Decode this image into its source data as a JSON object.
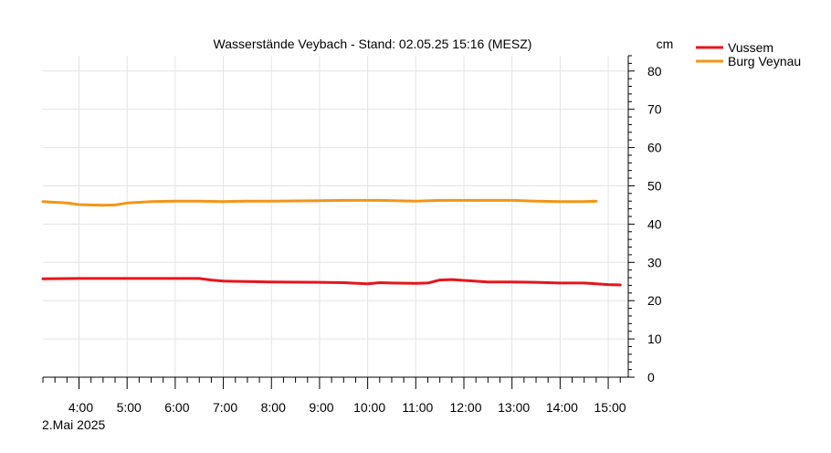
{
  "chart_data": {
    "type": "line",
    "title": "Wasserstände Veybach - Stand: 02.05.25 15:16 (MESZ)",
    "y_unit": "cm",
    "date_label": "2.Mai 2025",
    "x_range": [
      "03:15",
      "15:25"
    ],
    "ylim": [
      0,
      84
    ],
    "y_ticks": [
      "0",
      "10",
      "20",
      "30",
      "40",
      "50",
      "60",
      "70",
      "80"
    ],
    "x_ticks": [
      "4:00",
      "5:00",
      "6:00",
      "7:00",
      "8:00",
      "9:00",
      "10:00",
      "11:00",
      "12:00",
      "13:00",
      "14:00",
      "15:00"
    ],
    "grid": true,
    "legend_position": "top-right",
    "series": [
      {
        "name": "Vussem",
        "color": "#e8141c",
        "points": [
          [
            "03:15",
            25.7
          ],
          [
            "04:00",
            25.8
          ],
          [
            "05:00",
            25.8
          ],
          [
            "05:45",
            25.8
          ],
          [
            "06:30",
            25.8
          ],
          [
            "06:45",
            25.4
          ],
          [
            "07:00",
            25.1
          ],
          [
            "07:30",
            25.0
          ],
          [
            "08:00",
            24.9
          ],
          [
            "09:00",
            24.8
          ],
          [
            "09:30",
            24.7
          ],
          [
            "10:00",
            24.4
          ],
          [
            "10:15",
            24.7
          ],
          [
            "10:30",
            24.6
          ],
          [
            "11:00",
            24.5
          ],
          [
            "11:15",
            24.6
          ],
          [
            "11:30",
            25.4
          ],
          [
            "11:45",
            25.5
          ],
          [
            "12:00",
            25.3
          ],
          [
            "12:30",
            24.9
          ],
          [
            "13:00",
            24.9
          ],
          [
            "13:30",
            24.8
          ],
          [
            "14:00",
            24.6
          ],
          [
            "14:30",
            24.6
          ],
          [
            "15:00",
            24.2
          ],
          [
            "15:15",
            24.1
          ]
        ]
      },
      {
        "name": "Burg Veynau",
        "color": "#f39518",
        "points": [
          [
            "03:15",
            45.9
          ],
          [
            "03:45",
            45.5
          ],
          [
            "04:00",
            45.1
          ],
          [
            "04:30",
            44.9
          ],
          [
            "04:45",
            45.0
          ],
          [
            "05:00",
            45.5
          ],
          [
            "05:30",
            45.9
          ],
          [
            "06:00",
            46.0
          ],
          [
            "06:30",
            46.0
          ],
          [
            "07:00",
            45.9
          ],
          [
            "07:30",
            46.0
          ],
          [
            "08:00",
            46.0
          ],
          [
            "09:00",
            46.1
          ],
          [
            "09:30",
            46.2
          ],
          [
            "10:00",
            46.2
          ],
          [
            "10:15",
            46.2
          ],
          [
            "11:00",
            46.0
          ],
          [
            "11:30",
            46.2
          ],
          [
            "12:00",
            46.2
          ],
          [
            "13:00",
            46.2
          ],
          [
            "13:30",
            46.0
          ],
          [
            "14:00",
            45.9
          ],
          [
            "14:30",
            45.9
          ],
          [
            "14:45",
            46.0
          ]
        ]
      }
    ]
  }
}
